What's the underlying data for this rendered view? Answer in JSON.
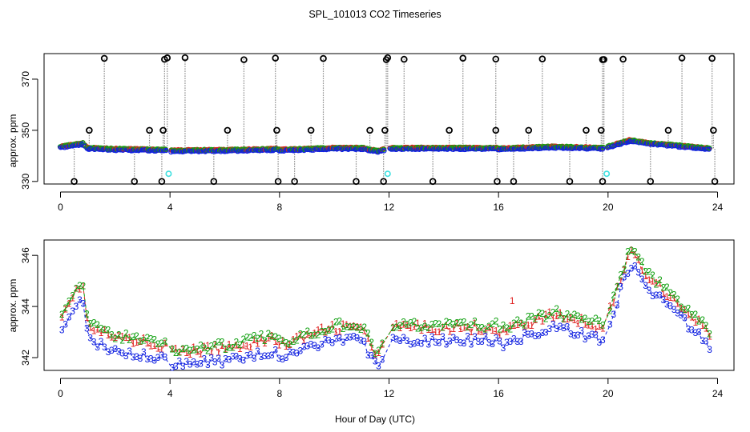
{
  "chart_data": [
    {
      "type": "scatter",
      "title": "SPL_101013  CO2 Timeseries",
      "xlabel": "",
      "ylabel": "approx. ppm",
      "xlim": [
        -0.6,
        24.6
      ],
      "ylim": [
        329,
        380
      ],
      "xticks": [
        "0",
        "4",
        "8",
        "12",
        "16",
        "20",
        "24"
      ],
      "yticks": [
        "330",
        "350",
        "370"
      ],
      "colors": {
        "outlier": "#000000",
        "series1": "#e02020",
        "series2": "#10a010",
        "series3": "#1020e0",
        "calibration": "#40e0e0",
        "dropline": "#888888"
      },
      "calibration_points": [
        [
          3.95,
          333
        ],
        [
          11.95,
          333
        ],
        [
          19.95,
          333
        ]
      ],
      "baseline": [
        [
          0.0,
          343.5
        ],
        [
          0.8,
          344.8
        ],
        [
          1.0,
          343.0
        ],
        [
          2.0,
          342.6
        ],
        [
          3.8,
          342.3
        ],
        [
          4.0,
          342.0
        ],
        [
          6.0,
          342.2
        ],
        [
          7.9,
          342.6
        ],
        [
          8.0,
          342.3
        ],
        [
          10.0,
          343.0
        ],
        [
          11.0,
          343.0
        ],
        [
          11.6,
          341.8
        ],
        [
          12.0,
          343.0
        ],
        [
          15.9,
          343.0
        ],
        [
          16.0,
          342.8
        ],
        [
          18.0,
          343.5
        ],
        [
          19.9,
          343.0
        ],
        [
          20.0,
          343.5
        ],
        [
          20.8,
          346.0
        ],
        [
          21.5,
          345.0
        ],
        [
          22.5,
          344.0
        ],
        [
          23.7,
          342.8
        ]
      ],
      "outliers_high": [
        1.6,
        3.8,
        3.9,
        4.55,
        6.7,
        7.85,
        9.6,
        11.9,
        11.95,
        12.55,
        14.7,
        15.9,
        17.6,
        19.8,
        19.85,
        20.55,
        22.7,
        23.8
      ],
      "outliers_mid": [
        1.05,
        3.25,
        3.75,
        6.1,
        7.9,
        9.15,
        11.3,
        11.85,
        14.2,
        15.9,
        17.1,
        19.2,
        19.75,
        22.2,
        23.85
      ],
      "outliers_low": [
        0.5,
        2.7,
        3.7,
        5.6,
        7.95,
        8.55,
        10.8,
        11.8,
        13.6,
        15.95,
        16.55,
        18.6,
        19.8,
        21.55,
        23.9
      ]
    },
    {
      "type": "line",
      "title": "",
      "xlabel": "Hour of Day (UTC)",
      "ylabel": "approx. ppm",
      "xlim": [
        -0.6,
        24.6
      ],
      "ylim": [
        341.5,
        346.6
      ],
      "xticks": [
        "0",
        "4",
        "8",
        "12",
        "16",
        "20",
        "24"
      ],
      "yticks": [
        "342",
        "344",
        "346"
      ],
      "series": [
        {
          "name": "1",
          "color": "#e02020",
          "offset": 0.15
        },
        {
          "name": "2",
          "color": "#10a010",
          "offset": 0.25
        },
        {
          "name": "3",
          "color": "#1020e0",
          "offset": -0.35
        }
      ],
      "annotations": [
        {
          "label": "1",
          "x": 16.5,
          "y": 344.2
        }
      ]
    }
  ]
}
